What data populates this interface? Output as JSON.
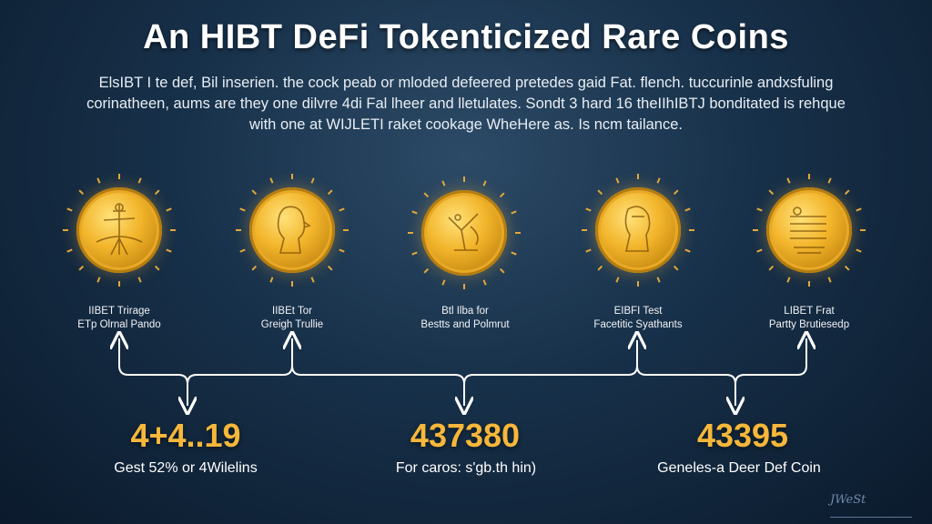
{
  "header": {
    "title": "An HIBT DeFi Tokenticized Rare Coins",
    "description_lines": [
      "ElsIBT I te def, Bil inserien. the cock peab or mloded defeered pretedes gaid Fat. flench. tuccurinle andxsfuling",
      "corinatheen, aums are they one dilvre 4di Fal lheer and lletulates. Sondt 3 hard 16 theIIhIBTJ bonditated is rehque",
      "with one at WIJLETI raket cookage WheHere as. Is ncm tailance."
    ]
  },
  "coins": [
    {
      "label_lines": [
        "IIBET Trirage",
        "ETp Olrnal Pando"
      ]
    },
    {
      "label_lines": [
        "IIBEt Tor",
        "Greigh Trullie"
      ]
    },
    {
      "label_lines": [
        "Btl Ilba for",
        "Bestts and Polmrut"
      ]
    },
    {
      "label_lines": [
        "EIBFI Test",
        "Facetitic Syathants"
      ]
    },
    {
      "label_lines": [
        "LIBET Frat",
        "Partty Brutiesedp"
      ]
    }
  ],
  "stats": [
    {
      "value": "4+4..19",
      "caption": "Gest 52% or 4Wilelins"
    },
    {
      "value": "437380",
      "caption": "For caros: s'gb.th hin)"
    },
    {
      "value": "43395",
      "caption": "Geneles-a Deer Def Coin"
    }
  ],
  "signature_text": "JWeSt",
  "colors": {
    "accent_gold": "#f6b73a",
    "coin_gold": "#f2b52b",
    "background_dark": "#0b1a2c",
    "connector": "#ffffff"
  }
}
